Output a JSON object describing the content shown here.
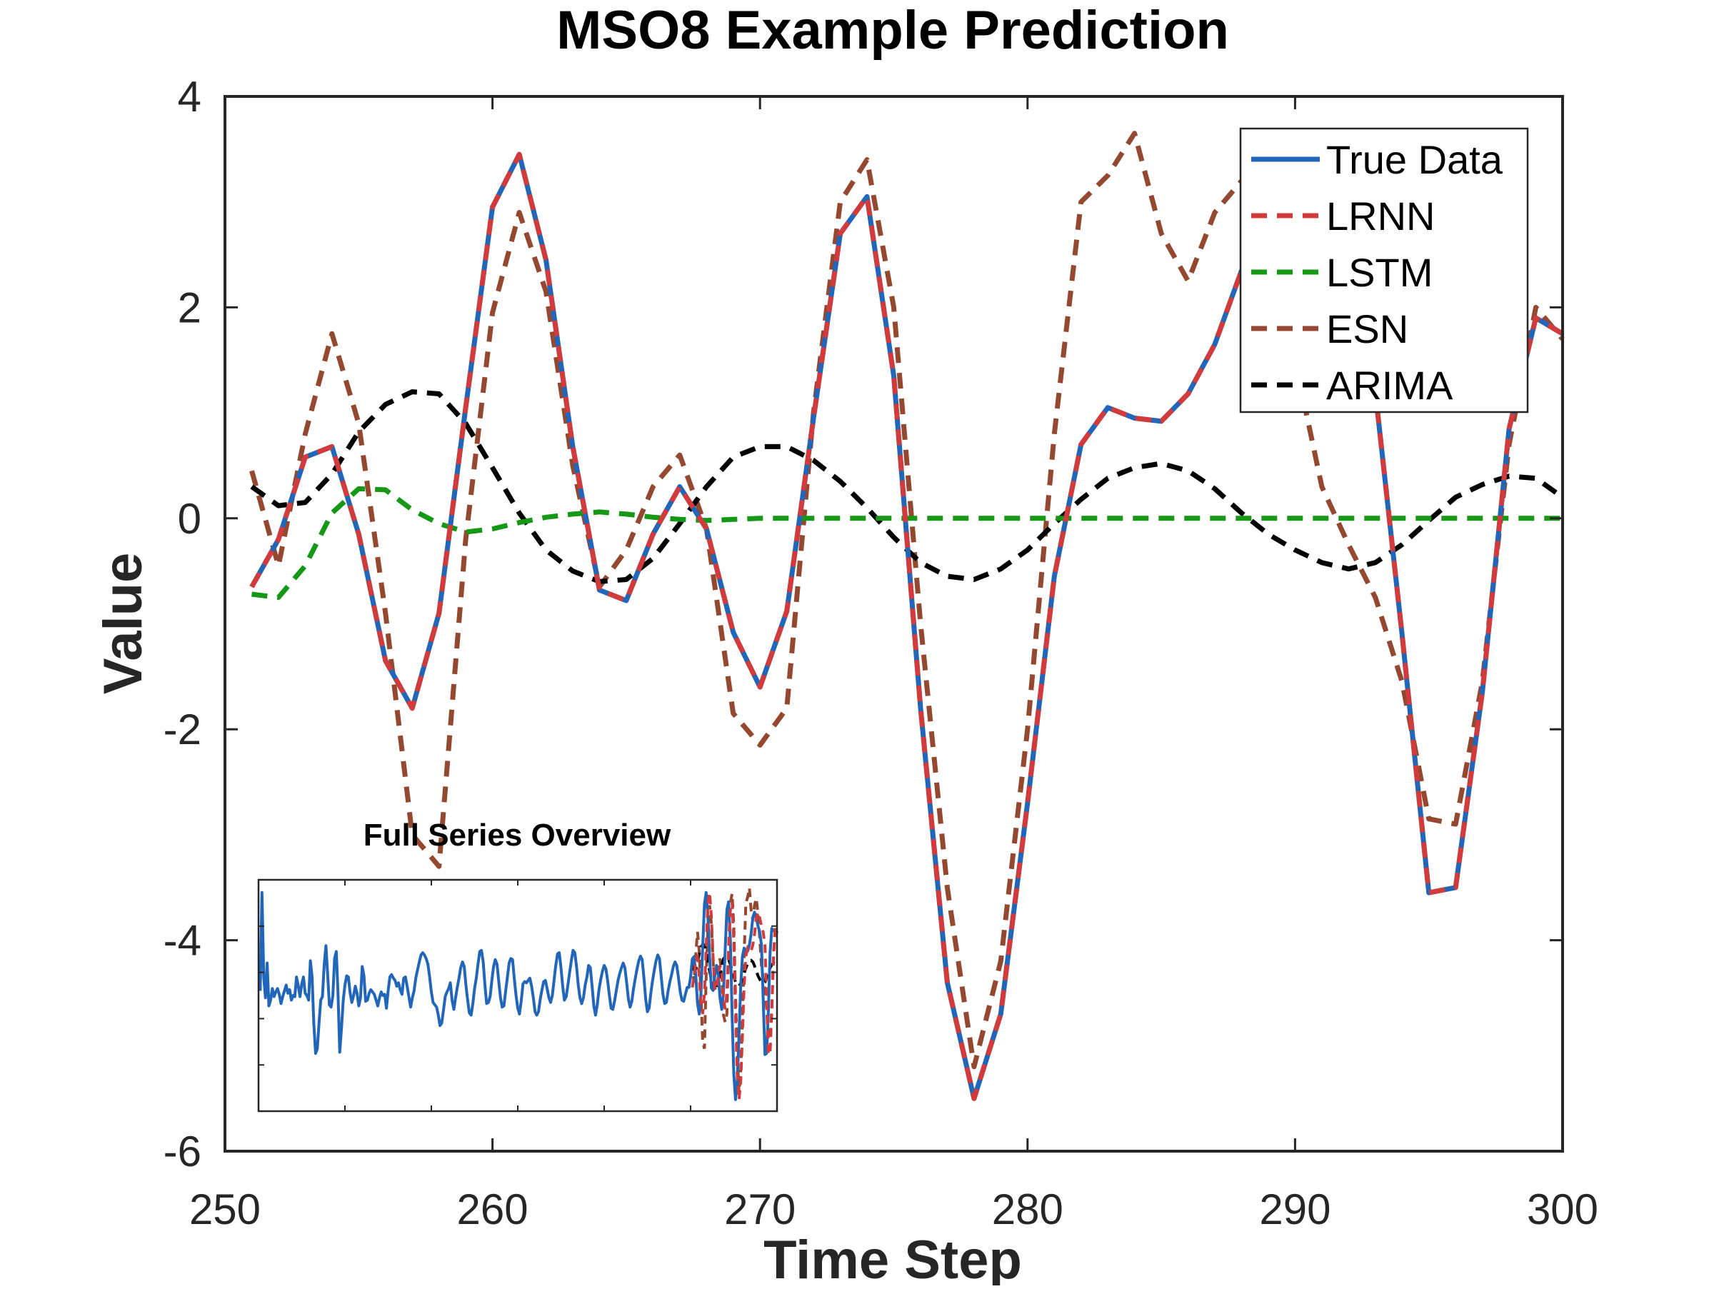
{
  "chart_data": {
    "type": "line",
    "title": "MSO8 Example Prediction",
    "xlabel": "Time Step",
    "ylabel": "Value",
    "xlim": [
      250,
      300
    ],
    "ylim": [
      -6,
      4
    ],
    "xticks": [
      250,
      260,
      270,
      280,
      290,
      300
    ],
    "yticks": [
      -6,
      -4,
      -2,
      0,
      2,
      4
    ],
    "grid": false,
    "legend_position": "top-right",
    "x": [
      251,
      252,
      253,
      254,
      255,
      256,
      257,
      258,
      259,
      260,
      261,
      262,
      263,
      264,
      265,
      266,
      267,
      268,
      269,
      270,
      271,
      272,
      273,
      274,
      275,
      276,
      277,
      278,
      279,
      280,
      281,
      282,
      283,
      284,
      285,
      286,
      287,
      288,
      289,
      290,
      291,
      292,
      293,
      294,
      295,
      296,
      297,
      298,
      299,
      300
    ],
    "series": [
      {
        "name": "True Data",
        "color": "#2166b8",
        "dash": "solid",
        "values": [
          -0.65,
          -0.2,
          0.58,
          0.68,
          -0.15,
          -1.35,
          -1.8,
          -0.9,
          1.05,
          2.95,
          3.45,
          2.45,
          0.68,
          -0.68,
          -0.78,
          -0.15,
          0.3,
          -0.1,
          -1.08,
          -1.6,
          -0.88,
          0.95,
          2.7,
          3.05,
          1.35,
          -1.8,
          -4.4,
          -5.5,
          -4.7,
          -2.7,
          -0.55,
          0.7,
          1.05,
          0.95,
          0.92,
          1.18,
          1.65,
          2.35,
          2.6,
          2.35,
          2.0,
          1.75,
          1.2,
          -1.1,
          -3.55,
          -3.5,
          -1.65,
          0.85,
          1.9,
          1.75
        ]
      },
      {
        "name": "LRNN",
        "color": "#d13b3b",
        "dash": "dashed",
        "values": [
          -0.65,
          -0.2,
          0.58,
          0.68,
          -0.15,
          -1.35,
          -1.8,
          -0.9,
          1.05,
          2.95,
          3.45,
          2.45,
          0.68,
          -0.68,
          -0.78,
          -0.15,
          0.3,
          -0.1,
          -1.08,
          -1.6,
          -0.88,
          0.95,
          2.7,
          3.05,
          1.35,
          -1.8,
          -4.4,
          -5.5,
          -4.7,
          -2.7,
          -0.55,
          0.7,
          1.05,
          0.95,
          0.92,
          1.18,
          1.65,
          2.35,
          2.6,
          2.35,
          2.0,
          1.75,
          1.2,
          -1.1,
          -3.55,
          -3.5,
          -1.65,
          0.85,
          1.9,
          1.75
        ]
      },
      {
        "name": "LSTM",
        "color": "#159815",
        "dash": "dashed",
        "values": [
          -0.72,
          -0.75,
          -0.45,
          0.05,
          0.28,
          0.27,
          0.08,
          -0.05,
          -0.13,
          -0.1,
          -0.04,
          0.01,
          0.04,
          0.06,
          0.04,
          0.01,
          -0.01,
          -0.02,
          -0.01,
          0.0,
          0.0,
          0.0,
          0.0,
          0.0,
          0.0,
          0.0,
          0.0,
          0.0,
          0.0,
          0.0,
          0.0,
          0.0,
          0.0,
          0.0,
          0.0,
          0.0,
          0.0,
          0.0,
          0.0,
          0.0,
          0.0,
          0.0,
          0.0,
          0.0,
          0.0,
          0.0,
          0.0,
          0.0,
          0.0,
          0.0
        ]
      },
      {
        "name": "ESN",
        "color": "#93482f",
        "dash": "dashed",
        "values": [
          0.45,
          -0.45,
          0.8,
          1.75,
          0.9,
          -0.9,
          -3.0,
          -3.3,
          -0.2,
          1.95,
          2.9,
          2.15,
          0.5,
          -0.65,
          -0.3,
          0.3,
          0.6,
          -0.1,
          -1.85,
          -2.15,
          -1.8,
          1.0,
          3.0,
          3.4,
          2.0,
          -1.0,
          -3.5,
          -5.2,
          -4.2,
          -2.0,
          0.8,
          3.0,
          3.25,
          3.65,
          2.7,
          2.25,
          2.9,
          3.2,
          2.5,
          1.5,
          0.3,
          -0.25,
          -0.75,
          -1.55,
          -2.85,
          -2.9,
          -1.55,
          0.7,
          2.0,
          1.7
        ]
      },
      {
        "name": "ARIMA",
        "color": "#000000",
        "dash": "dashed",
        "values": [
          0.3,
          0.12,
          0.15,
          0.42,
          0.82,
          1.08,
          1.2,
          1.18,
          0.9,
          0.48,
          0.05,
          -0.3,
          -0.5,
          -0.6,
          -0.58,
          -0.38,
          -0.05,
          0.3,
          0.58,
          0.68,
          0.68,
          0.55,
          0.35,
          0.1,
          -0.18,
          -0.42,
          -0.55,
          -0.58,
          -0.48,
          -0.3,
          -0.05,
          0.18,
          0.38,
          0.48,
          0.52,
          0.45,
          0.28,
          0.05,
          -0.15,
          -0.3,
          -0.42,
          -0.48,
          -0.42,
          -0.25,
          -0.02,
          0.2,
          0.32,
          0.4,
          0.38,
          0.2
        ]
      }
    ],
    "inset": {
      "title": "Full Series Overview",
      "xlim": [
        0,
        300
      ],
      "ylim": [
        -6,
        4
      ],
      "forecast_start": 250,
      "true_series": [
        -0.8,
        3.45,
        -0.2,
        -1.1,
        0.4,
        -1.45,
        -1.2,
        -0.7,
        -1.05,
        -0.85,
        -0.7,
        -0.95,
        -1.35,
        -1.05,
        -0.8,
        -0.55,
        -0.9,
        -0.75,
        -1.2,
        -1.0,
        -1.05,
        -0.2,
        -0.6,
        -1.05,
        -0.5,
        -0.2,
        -0.9,
        -1.0,
        -1.2,
        0.5,
        -0.2,
        -2.2,
        -3.5,
        -3.3,
        -2.2,
        -1.2,
        -1.05,
        0.35,
        1.15,
        -0.1,
        -1.4,
        -1.5,
        -1.0,
        0.6,
        0.9,
        -0.9,
        -3.45,
        -2.4,
        -1.2,
        -0.55,
        -0.15,
        -0.2,
        -0.9,
        -1.3,
        -1.0,
        -0.6,
        -0.9,
        -1.45,
        -1.1,
        0.25,
        -0.15,
        -1.25,
        -1.2,
        -0.9,
        -0.75,
        -0.85,
        -0.95,
        -1.2,
        -1.45,
        -1.1,
        -0.85,
        -1.0,
        -0.95,
        -1.55,
        -0.8,
        -0.2,
        -0.1,
        -0.25,
        -0.35,
        -0.6,
        -0.45,
        -0.75,
        -0.95,
        -0.25,
        -0.2,
        -0.6,
        -1.05,
        -1.5,
        -1.1,
        -0.8,
        -0.25,
        0.1,
        0.45,
        0.75,
        0.85,
        0.75,
        0.6,
        0.35,
        -0.2,
        -0.85,
        -1.3,
        -1.4,
        -1.5,
        -1.85,
        -2.3,
        -2.2,
        -1.65,
        -1.05,
        -0.85,
        -0.7,
        -0.45,
        -1.2,
        -1.6,
        -1.1,
        -0.65,
        -0.25,
        0.2,
        0.45,
        0.25,
        -0.55,
        -1.2,
        -1.75,
        -1.85,
        -1.35,
        -0.7,
        -0.25,
        0.35,
        0.9,
        0.95,
        0.45,
        -0.55,
        -1.35,
        -1.3,
        -1.05,
        -0.35,
        0.25,
        0.55,
        0.35,
        -0.4,
        -1.1,
        -1.5,
        -1.45,
        -0.8,
        -0.2,
        0.4,
        0.6,
        0.55,
        -0.3,
        -1.0,
        -1.55,
        -1.8,
        -1.25,
        -0.5,
        -0.4,
        -0.45,
        -0.35,
        -0.25,
        -0.6,
        -1.1,
        -1.7,
        -1.85,
        -1.7,
        -1.15,
        -0.75,
        -0.4,
        -0.35,
        -0.7,
        -1.1,
        -1.3,
        -1.0,
        -0.35,
        0.3,
        0.8,
        0.85,
        0.2,
        -0.6,
        -1.2,
        -1.05,
        -0.55,
        0.0,
        0.5,
        0.95,
        0.85,
        0.25,
        -0.55,
        -1.1,
        -1.35,
        -1.1,
        -0.55,
        -0.2,
        0.3,
        0.2,
        -0.6,
        -1.45,
        -1.85,
        -1.4,
        -0.75,
        -0.3,
        0.05,
        0.3,
        0.15,
        -0.35,
        -1.0,
        -1.55,
        -1.6,
        -1.25,
        -0.8,
        -0.35,
        -0.05,
        0.2,
        0.4,
        0.2,
        -0.45,
        -1.15,
        -1.5,
        -1.25,
        -0.7,
        -0.25,
        0.15,
        0.5,
        0.7,
        0.55,
        -0.25,
        -1.15,
        -1.7,
        -1.55,
        -0.9,
        -0.35,
        0.1,
        0.5,
        0.75,
        0.6,
        -0.2,
        -0.95,
        -1.35,
        -1.3,
        -0.8,
        -0.4,
        -0.1,
        0.25,
        0.45,
        0.3,
        -0.25,
        -0.85,
        -1.2,
        -1.25,
        -0.95,
        -0.65,
        -0.65,
        -0.2,
        0.58,
        0.68,
        -0.15,
        -1.35,
        -1.8,
        -0.9,
        1.05,
        2.95,
        3.45,
        2.45,
        0.68,
        -0.68,
        -0.78,
        -0.15,
        0.3,
        -0.1,
        -1.08,
        -1.6,
        -0.88,
        0.95,
        2.7,
        3.05,
        1.35,
        -1.8,
        -4.4,
        -5.5,
        -4.7,
        -2.7,
        -0.55,
        0.7,
        1.05,
        0.95,
        0.92,
        1.18,
        1.65,
        2.35,
        2.6,
        2.35,
        2.0,
        1.75,
        1.2,
        -1.1,
        -3.55,
        -3.5,
        -1.65,
        0.85,
        1.9,
        1.75
      ]
    }
  }
}
